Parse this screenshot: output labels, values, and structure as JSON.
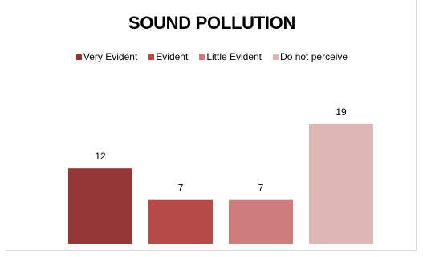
{
  "chart_data": {
    "type": "bar",
    "title": "SOUND POLLUTION",
    "categories": [
      "Very Evident",
      "Evident",
      "Little Evident",
      "Do not perceive"
    ],
    "values": [
      12,
      7,
      7,
      19
    ],
    "colors": [
      "#953735",
      "#b64a47",
      "#cd7d7b",
      "#dfb6b6"
    ],
    "xlabel": "",
    "ylabel": "",
    "ylim": [
      0,
      20
    ],
    "grid": false,
    "legend": "top"
  }
}
